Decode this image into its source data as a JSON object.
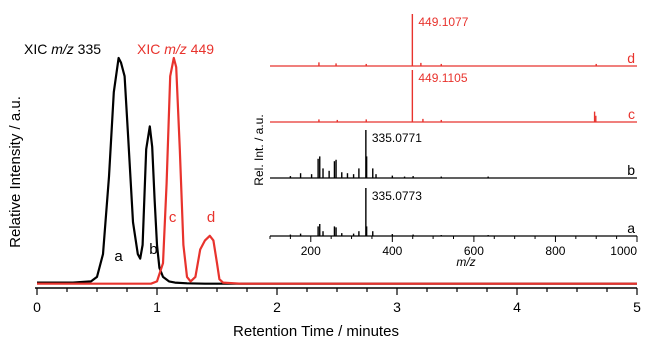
{
  "colors": {
    "black": "#000000",
    "red": "#e8332d"
  },
  "chart_data": [
    {
      "type": "line",
      "name": "main-chromatogram",
      "xlabel": "Retention Time / minutes",
      "ylabel": "Relative Intensity / a.u.",
      "xlim": [
        0,
        5
      ],
      "ylim": [
        0,
        100
      ],
      "xticks": [
        "0",
        "1",
        "2",
        "3",
        "4",
        "5"
      ],
      "grid": false,
      "series": [
        {
          "name": "XIC m/z 335",
          "prefix": "XIC ",
          "mz": "m/z",
          "suffix": " 335",
          "color": "#000000",
          "x": [
            0,
            0.3,
            0.45,
            0.5,
            0.55,
            0.6,
            0.64,
            0.68,
            0.7,
            0.73,
            0.76,
            0.8,
            0.84,
            0.86,
            0.88,
            0.91,
            0.94,
            0.96,
            0.98,
            1.0,
            1.02,
            1.05,
            1.1,
            1.15,
            1.25,
            1.4,
            1.6,
            2.0,
            2.5,
            3.0,
            3.5,
            4.0,
            4.5,
            5.0
          ],
          "y": [
            1.5,
            1.5,
            2,
            4,
            14,
            48,
            85,
            100,
            98,
            92,
            65,
            28,
            14,
            12,
            18,
            60,
            70,
            61,
            38,
            18,
            8,
            4,
            2,
            1.5,
            1.2,
            1,
            1,
            1,
            1,
            1,
            1,
            1,
            1,
            1
          ]
        },
        {
          "name": "XIC m/z 449",
          "prefix": "XIC ",
          "mz": "m/z",
          "suffix": " 449",
          "color": "#e8332d",
          "x": [
            0,
            0.6,
            0.8,
            0.95,
            1.0,
            1.05,
            1.08,
            1.11,
            1.14,
            1.16,
            1.19,
            1.22,
            1.25,
            1.28,
            1.32,
            1.36,
            1.4,
            1.44,
            1.47,
            1.5,
            1.52,
            1.55,
            1.7,
            2.0,
            3.0,
            4.0,
            5.0
          ],
          "y": [
            1,
            1,
            1,
            1,
            2,
            10,
            45,
            92,
            100,
            96,
            60,
            18,
            4,
            2,
            4,
            16,
            20,
            22,
            20,
            10,
            3,
            1.5,
            1,
            1,
            1,
            1,
            1
          ]
        }
      ],
      "annotations": [
        {
          "text": "a",
          "x": 0.68,
          "y": 11,
          "color": "#000000"
        },
        {
          "text": "b",
          "x": 0.97,
          "y": 14,
          "color": "#000000"
        },
        {
          "text": "c",
          "x": 1.13,
          "y": 28,
          "color": "#e8332d"
        },
        {
          "text": "d",
          "x": 1.45,
          "y": 28,
          "color": "#e8332d"
        }
      ]
    },
    {
      "type": "bar",
      "name": "inset-mass-spectra",
      "xlabel": "m/z",
      "ylabel": "Rel. Int. / a.u.",
      "xlim": [
        100,
        1000
      ],
      "xticks": [
        "200",
        "400",
        "600",
        "800",
        "1000"
      ],
      "spectra": [
        {
          "label": "d",
          "color": "#e8332d",
          "peak_label": "449.1077",
          "peaks": [
            [
              220,
              0.07
            ],
            [
              262,
              0.05
            ],
            [
              336,
              0.04
            ],
            [
              449.1077,
              1.0
            ],
            [
              470,
              0.06
            ],
            [
              520,
              0.04
            ],
            [
              900,
              0.04
            ]
          ]
        },
        {
          "label": "c",
          "color": "#e8332d",
          "peak_label": "449.1105",
          "peaks": [
            [
              220,
              0.05
            ],
            [
              265,
              0.04
            ],
            [
              336,
              0.05
            ],
            [
              449.1105,
              1.0
            ],
            [
              475,
              0.06
            ],
            [
              520,
              0.04
            ],
            [
              896,
              0.2
            ],
            [
              899,
              0.12
            ]
          ]
        },
        {
          "label": "b",
          "color": "#000000",
          "peak_label": "335.0771",
          "peaks": [
            [
              150,
              0.04
            ],
            [
              175,
              0.1
            ],
            [
              202,
              0.08
            ],
            [
              218,
              0.4
            ],
            [
              222,
              0.45
            ],
            [
              230,
              0.2
            ],
            [
              245,
              0.15
            ],
            [
              258,
              0.35
            ],
            [
              262,
              0.38
            ],
            [
              276,
              0.12
            ],
            [
              290,
              0.1
            ],
            [
              305,
              0.08
            ],
            [
              318,
              0.2
            ],
            [
              335.0771,
              1.0
            ],
            [
              337,
              0.45
            ],
            [
              352,
              0.2
            ],
            [
              360,
              0.08
            ],
            [
              400,
              0.05
            ],
            [
              430,
              0.03
            ],
            [
              451,
              0.04
            ],
            [
              520,
              0.03
            ],
            [
              635,
              0.03
            ]
          ]
        },
        {
          "label": "a",
          "color": "#000000",
          "peak_label": "335.0773",
          "peaks": [
            [
              150,
              0.03
            ],
            [
              175,
              0.05
            ],
            [
              218,
              0.2
            ],
            [
              222,
              0.25
            ],
            [
              230,
              0.1
            ],
            [
              258,
              0.2
            ],
            [
              262,
              0.18
            ],
            [
              276,
              0.06
            ],
            [
              305,
              0.05
            ],
            [
              318,
              0.1
            ],
            [
              335.0773,
              1.0
            ],
            [
              337,
              0.2
            ],
            [
              352,
              0.1
            ],
            [
              400,
              0.04
            ],
            [
              451,
              0.03
            ],
            [
              520,
              0.02
            ],
            [
              635,
              0.02
            ]
          ]
        }
      ]
    }
  ]
}
